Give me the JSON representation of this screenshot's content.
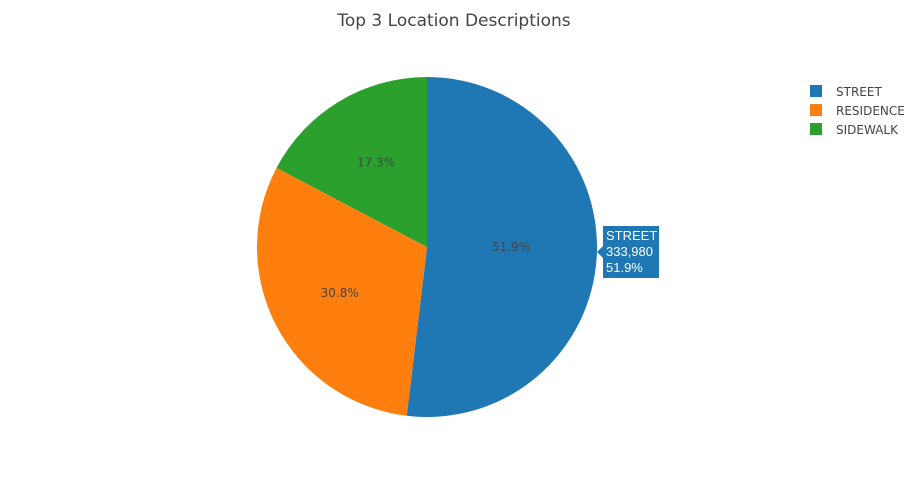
{
  "chart_data": {
    "type": "pie",
    "title": "Top 3 Location Descriptions",
    "labels": [
      "STREET",
      "RESIDENCE",
      "SIDEWALK"
    ],
    "percent_labels": [
      "51.9%",
      "30.8%",
      "17.3%"
    ],
    "values": [
      51.9,
      30.8,
      17.3
    ],
    "colors": [
      "#1f77b4",
      "#ff7f0e",
      "#2ca02c"
    ],
    "legend": {
      "position": "top-right",
      "entries": [
        "STREET",
        "RESIDENCE",
        "SIDEWALK"
      ]
    },
    "hover": {
      "label": "STREET",
      "value": "333,980",
      "percent": "51.9%"
    }
  }
}
